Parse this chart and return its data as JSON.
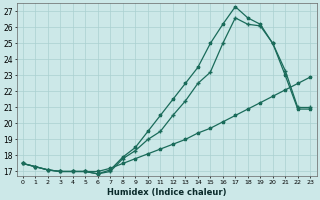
{
  "xlabel": "Humidex (Indice chaleur)",
  "xlim": [
    -0.5,
    23.5
  ],
  "ylim": [
    16.7,
    27.5
  ],
  "yticks": [
    17,
    18,
    19,
    20,
    21,
    22,
    23,
    24,
    25,
    26,
    27
  ],
  "xticks": [
    0,
    1,
    2,
    3,
    4,
    5,
    6,
    7,
    8,
    9,
    10,
    11,
    12,
    13,
    14,
    15,
    16,
    17,
    18,
    19,
    20,
    21,
    22,
    23
  ],
  "background_color": "#cce8e8",
  "grid_color": "#aad0d0",
  "line_color": "#1a6b5a",
  "line1_x": [
    0,
    1,
    2,
    3,
    4,
    5,
    6,
    7,
    8,
    9,
    10,
    11,
    12,
    13,
    14,
    15,
    16,
    17,
    18,
    19,
    20,
    21,
    22,
    23
  ],
  "line1_y": [
    17.5,
    17.3,
    17.1,
    17.0,
    17.0,
    17.0,
    16.85,
    17.0,
    17.8,
    18.3,
    19.0,
    19.5,
    20.5,
    21.4,
    22.5,
    23.2,
    25.0,
    26.6,
    26.2,
    26.1,
    25.0,
    23.3,
    21.0,
    21.0
  ],
  "line2_x": [
    0,
    1,
    2,
    3,
    4,
    5,
    6,
    7,
    8,
    9,
    10,
    11,
    12,
    13,
    14,
    15,
    16,
    17,
    18,
    19,
    20,
    21,
    22,
    23
  ],
  "line2_y": [
    17.5,
    17.3,
    17.1,
    17.0,
    17.0,
    17.0,
    16.85,
    17.1,
    17.9,
    18.5,
    19.5,
    20.5,
    21.5,
    22.5,
    23.5,
    25.0,
    26.2,
    27.3,
    26.6,
    26.2,
    25.0,
    23.0,
    20.9,
    20.9
  ],
  "line3_x": [
    0,
    1,
    2,
    3,
    4,
    5,
    6,
    7,
    8,
    9,
    10,
    11,
    12,
    13,
    14,
    15,
    16,
    17,
    18,
    19,
    20,
    21,
    22,
    23
  ],
  "line3_y": [
    17.5,
    17.3,
    17.1,
    17.0,
    17.0,
    17.0,
    17.0,
    17.2,
    17.5,
    17.8,
    18.1,
    18.4,
    18.7,
    19.0,
    19.4,
    19.7,
    20.1,
    20.5,
    20.9,
    21.3,
    21.7,
    22.1,
    22.5,
    22.9
  ]
}
